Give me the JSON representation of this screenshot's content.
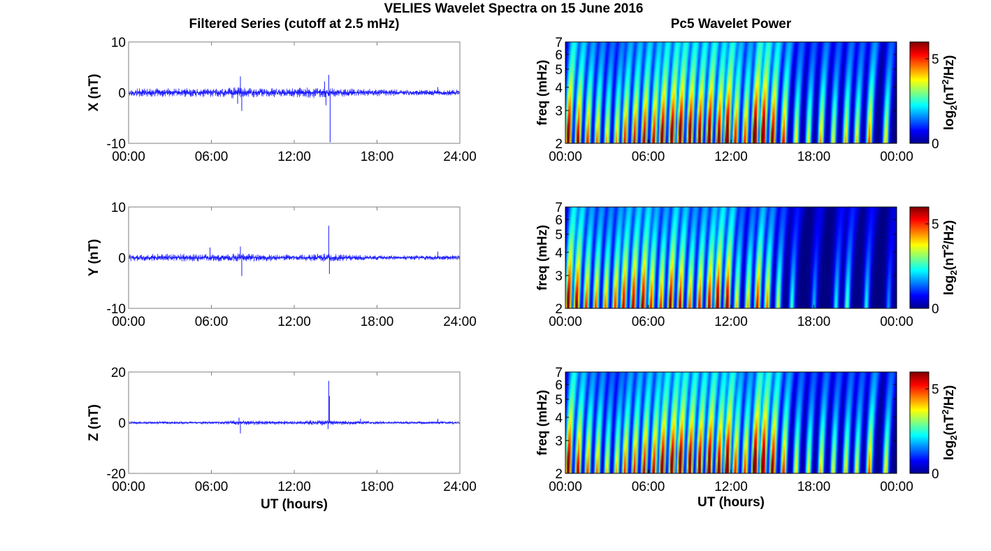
{
  "figure": {
    "title": "VELIES Wavelet Spectra on 15 June 2016",
    "left_title": "Filtered Series (cutoff at 2.5 mHz)",
    "right_title": "Pc5 Wavelet Power"
  },
  "colors": {
    "trace": "#1a1aff",
    "frame": "#7f7f7f",
    "colormap": "jet"
  },
  "chart_data": [
    {
      "type": "line",
      "title": "Filtered Series (cutoff at 2.5 mHz)",
      "ylabel": "X (nT)",
      "xlabel": "",
      "x_ticks": [
        "00:00",
        "06:00",
        "12:00",
        "18:00",
        "24:00"
      ],
      "y_ticks": [
        "10",
        "0",
        "-10"
      ],
      "xlim": [
        0,
        24
      ],
      "ylim": [
        -10,
        10
      ],
      "noise_envelope": [
        [
          0,
          0.9
        ],
        [
          6,
          0.9
        ],
        [
          7.5,
          1.3
        ],
        [
          8.5,
          1.0
        ],
        [
          11,
          0.9
        ],
        [
          13.5,
          1.2
        ],
        [
          15.5,
          0.9
        ],
        [
          19,
          0.7
        ],
        [
          24,
          0.6
        ]
      ],
      "spikes": [
        [
          8.1,
          3.2
        ],
        [
          8.2,
          -3.6
        ],
        [
          7.9,
          -2.2
        ],
        [
          14.2,
          2.2
        ],
        [
          14.5,
          3.5
        ],
        [
          14.6,
          -9.8
        ],
        [
          14.3,
          -2.5
        ],
        [
          22.4,
          1.1
        ]
      ]
    },
    {
      "type": "line",
      "ylabel": "Y (nT)",
      "xlabel": "",
      "x_ticks": [
        "00:00",
        "06:00",
        "12:00",
        "18:00",
        "24:00"
      ],
      "y_ticks": [
        "10",
        "0",
        "-10"
      ],
      "xlim": [
        0,
        24
      ],
      "ylim": [
        -10,
        10
      ],
      "noise_envelope": [
        [
          0,
          0.8
        ],
        [
          6,
          0.8
        ],
        [
          8,
          0.9
        ],
        [
          12,
          0.6
        ],
        [
          14,
          0.9
        ],
        [
          18,
          0.5
        ],
        [
          24,
          0.5
        ]
      ],
      "spikes": [
        [
          5.9,
          2.0
        ],
        [
          8.1,
          2.2
        ],
        [
          8.2,
          -3.6
        ],
        [
          14.5,
          6.3
        ],
        [
          14.55,
          -3.2
        ],
        [
          22.4,
          1.2
        ]
      ]
    },
    {
      "type": "line",
      "ylabel": "Z (nT)",
      "xlabel": "UT (hours)",
      "x_ticks": [
        "00:00",
        "06:00",
        "12:00",
        "18:00",
        "24:00"
      ],
      "y_ticks": [
        "20",
        "0",
        "-20"
      ],
      "xlim": [
        0,
        24
      ],
      "ylim": [
        -20,
        20
      ],
      "noise_envelope": [
        [
          0,
          0.6
        ],
        [
          6,
          0.6
        ],
        [
          8,
          1.0
        ],
        [
          12,
          0.7
        ],
        [
          14,
          1.2
        ],
        [
          18,
          0.6
        ],
        [
          24,
          0.6
        ]
      ],
      "spikes": [
        [
          8.1,
          -4.2
        ],
        [
          8.0,
          2.0
        ],
        [
          14.45,
          -2.5
        ],
        [
          14.5,
          16.5
        ],
        [
          14.55,
          10.5
        ],
        [
          16.8,
          1.6
        ],
        [
          22.4,
          1.5
        ]
      ]
    },
    {
      "type": "heatmap",
      "title": "Pc5 Wavelet Power",
      "ylabel": "freq (mHz)",
      "xlabel": "",
      "x_ticks": [
        "00:00",
        "06:00",
        "12:00",
        "18:00",
        "00:00"
      ],
      "y_ticks": [
        "2",
        "3",
        "4",
        "5",
        "6",
        "7"
      ],
      "xlim": [
        0,
        24
      ],
      "ylim": [
        2,
        7
      ],
      "yscale": "log",
      "colorbar": {
        "label": "log2(nT2/Hz)",
        "ticks": [
          "0",
          "5"
        ],
        "range": [
          0,
          6
        ]
      },
      "bursts": [
        [
          0.2,
          6.0
        ],
        [
          0.9,
          5.2
        ],
        [
          1.6,
          4.4
        ],
        [
          2.3,
          4.0
        ],
        [
          3.0,
          3.6
        ],
        [
          3.7,
          3.8
        ],
        [
          4.3,
          4.6
        ],
        [
          5.0,
          4.8
        ],
        [
          5.7,
          5.2
        ],
        [
          6.4,
          5.0
        ],
        [
          7.0,
          5.8
        ],
        [
          7.7,
          6.0
        ],
        [
          8.3,
          6.2
        ],
        [
          9.0,
          6.0
        ],
        [
          9.7,
          5.8
        ],
        [
          10.4,
          6.2
        ],
        [
          11.1,
          5.6
        ],
        [
          11.7,
          6.3
        ],
        [
          12.3,
          4.8
        ],
        [
          13.0,
          4.5
        ],
        [
          13.7,
          6.5
        ],
        [
          14.3,
          6.4
        ],
        [
          15.0,
          5.6
        ],
        [
          15.8,
          4.6
        ],
        [
          16.7,
          3.4
        ],
        [
          17.6,
          3.2
        ],
        [
          18.5,
          3.8
        ],
        [
          19.4,
          3.2
        ],
        [
          20.3,
          3.6
        ],
        [
          21.1,
          3.4
        ],
        [
          22.0,
          4.2
        ],
        [
          23.2,
          3.4
        ]
      ]
    },
    {
      "type": "heatmap",
      "ylabel": "freq (mHz)",
      "xlabel": "",
      "x_ticks": [
        "00:00",
        "06:00",
        "12:00",
        "18:00",
        "00:00"
      ],
      "y_ticks": [
        "2",
        "3",
        "4",
        "5",
        "6",
        "7"
      ],
      "xlim": [
        0,
        24
      ],
      "ylim": [
        2,
        7
      ],
      "yscale": "log",
      "colorbar": {
        "label": "log2(nT2/Hz)",
        "ticks": [
          "0",
          "5"
        ],
        "range": [
          0,
          6
        ]
      },
      "bursts": [
        [
          0.2,
          5.8
        ],
        [
          0.8,
          5.4
        ],
        [
          1.5,
          4.4
        ],
        [
          2.2,
          4.2
        ],
        [
          2.9,
          4.0
        ],
        [
          3.6,
          4.4
        ],
        [
          4.2,
          5.0
        ],
        [
          4.9,
          5.2
        ],
        [
          5.6,
          5.4
        ],
        [
          6.2,
          4.6
        ],
        [
          6.9,
          4.4
        ],
        [
          7.6,
          5.4
        ],
        [
          8.3,
          5.0
        ],
        [
          9.0,
          4.2
        ],
        [
          9.7,
          4.6
        ],
        [
          10.4,
          5.0
        ],
        [
          11.0,
          5.6
        ],
        [
          11.7,
          5.4
        ],
        [
          12.4,
          3.4
        ],
        [
          13.2,
          3.6
        ],
        [
          13.9,
          4.8
        ],
        [
          14.6,
          4.0
        ],
        [
          15.4,
          3.0
        ],
        [
          16.4,
          2.2
        ],
        [
          18.0,
          1.6
        ],
        [
          19.6,
          2.0
        ],
        [
          20.4,
          2.4
        ],
        [
          21.8,
          2.0
        ],
        [
          23.4,
          1.4
        ]
      ]
    },
    {
      "type": "heatmap",
      "ylabel": "freq (mHz)",
      "xlabel": "UT (hours)",
      "x_ticks": [
        "00:00",
        "06:00",
        "12:00",
        "18:00",
        "00:00"
      ],
      "y_ticks": [
        "2",
        "3",
        "4",
        "5",
        "6",
        "7"
      ],
      "xlim": [
        0,
        24
      ],
      "ylim": [
        2,
        7
      ],
      "yscale": "log",
      "colorbar": {
        "label": "log2(nT2/Hz)",
        "ticks": [
          "0",
          "5"
        ],
        "range": [
          0,
          6
        ]
      },
      "bursts": [
        [
          0.2,
          6.0
        ],
        [
          0.9,
          5.0
        ],
        [
          1.6,
          4.2
        ],
        [
          2.3,
          4.0
        ],
        [
          3.0,
          3.4
        ],
        [
          3.7,
          3.6
        ],
        [
          4.3,
          4.4
        ],
        [
          5.0,
          4.6
        ],
        [
          5.7,
          5.0
        ],
        [
          6.4,
          5.0
        ],
        [
          7.0,
          5.8
        ],
        [
          7.7,
          6.0
        ],
        [
          8.3,
          6.2
        ],
        [
          9.0,
          6.0
        ],
        [
          9.7,
          5.8
        ],
        [
          10.4,
          6.2
        ],
        [
          11.1,
          5.6
        ],
        [
          11.7,
          6.3
        ],
        [
          12.3,
          4.6
        ],
        [
          13.0,
          4.4
        ],
        [
          13.7,
          6.5
        ],
        [
          14.3,
          6.4
        ],
        [
          15.0,
          5.6
        ],
        [
          15.8,
          4.4
        ],
        [
          16.7,
          3.4
        ],
        [
          17.6,
          3.2
        ],
        [
          18.5,
          3.6
        ],
        [
          19.4,
          3.2
        ],
        [
          20.3,
          3.4
        ],
        [
          21.1,
          3.2
        ],
        [
          22.0,
          4.2
        ],
        [
          23.2,
          3.4
        ]
      ]
    }
  ]
}
